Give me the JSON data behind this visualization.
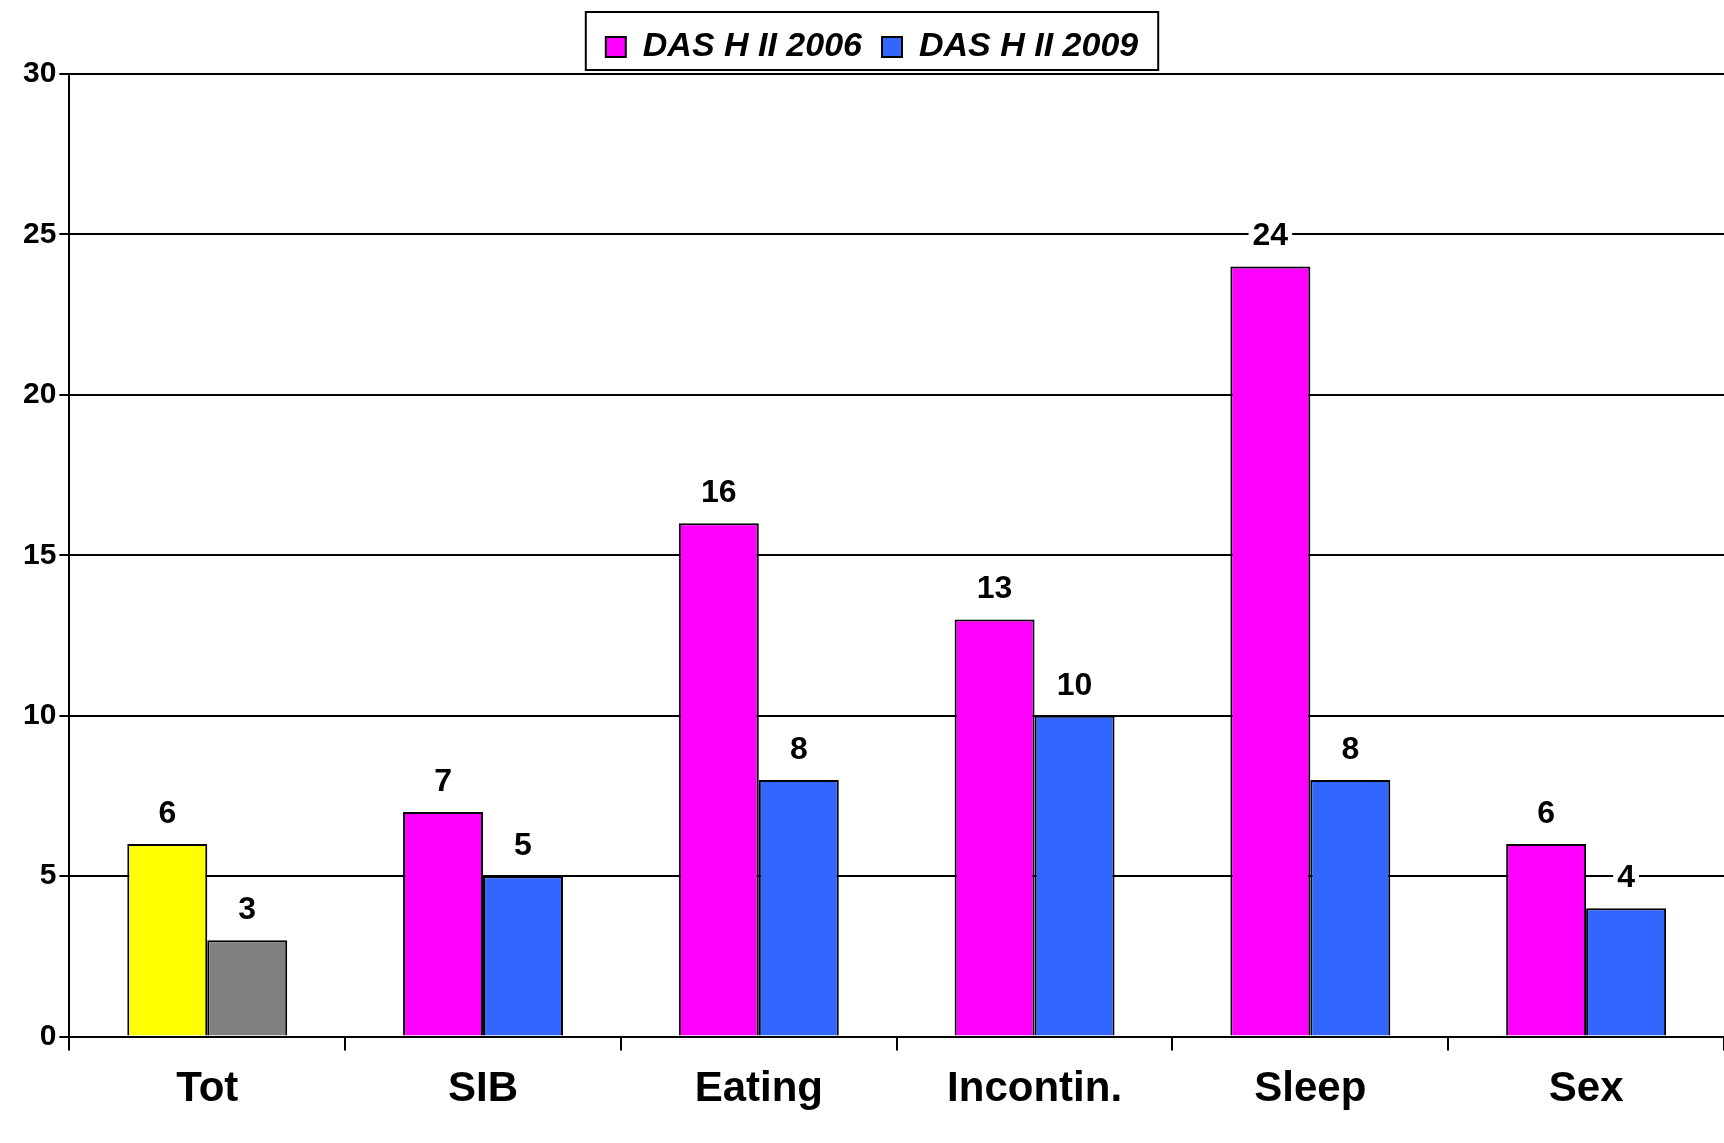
{
  "chart_data": {
    "type": "bar",
    "categories": [
      "Tot",
      "SIB",
      "Eating",
      "Incontin.",
      "Sleep",
      "Sex"
    ],
    "series": [
      {
        "name": "DAS H II 2006",
        "color": "#ff00ff",
        "colors": [
          "#ffff00",
          "#ff00ff",
          "#ff00ff",
          "#ff00ff",
          "#ff00ff",
          "#ff00ff"
        ],
        "values": [
          6,
          7,
          16,
          13,
          24,
          6
        ]
      },
      {
        "name": "DAS H II 2009",
        "color": "#3366ff",
        "colors": [
          "#808080",
          "#3366ff",
          "#3366ff",
          "#3366ff",
          "#3366ff",
          "#3366ff"
        ],
        "values": [
          3,
          5,
          8,
          10,
          8,
          4
        ]
      }
    ],
    "ylim": [
      0,
      30
    ],
    "yticks": [
      0,
      5,
      10,
      15,
      20,
      25,
      30
    ],
    "grid": "y",
    "legend": "top",
    "data_labels": true
  }
}
